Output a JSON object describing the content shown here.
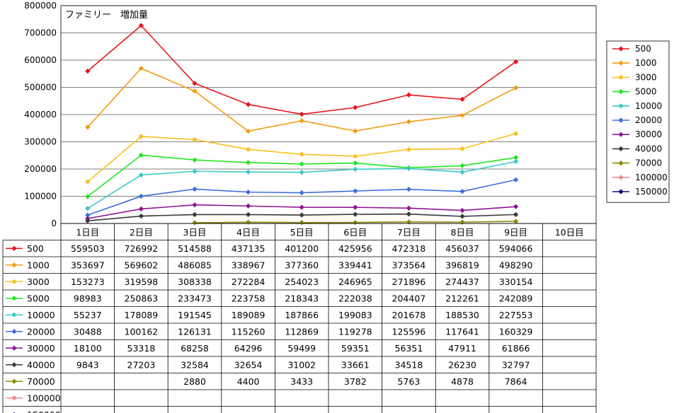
{
  "chart_data": {
    "type": "line",
    "title": "ファミリー　増加量",
    "xlabel": "",
    "ylabel": "",
    "ylim": [
      0,
      800000
    ],
    "yticks": [
      "0",
      "100000",
      "200000",
      "300000",
      "400000",
      "500000",
      "600000",
      "700000",
      "800000"
    ],
    "grid": true,
    "legend": "right",
    "categories": [
      "1日目",
      "2日目",
      "3日目",
      "4日目",
      "5日目",
      "6日目",
      "7日目",
      "8日目",
      "9日目",
      "10日目"
    ],
    "series": [
      {
        "name": "500",
        "color": "#e8141c",
        "values": [
          559503,
          726992,
          514588,
          437135,
          401200,
          425956,
          472318,
          456037,
          594066,
          null
        ]
      },
      {
        "name": "1000",
        "color": "#f39c12",
        "values": [
          353697,
          569602,
          486085,
          338967,
          377360,
          339441,
          373564,
          396819,
          498290,
          null
        ]
      },
      {
        "name": "3000",
        "color": "#f9c01c",
        "values": [
          153273,
          319598,
          308338,
          272284,
          254023,
          246965,
          271896,
          274437,
          330154,
          null
        ]
      },
      {
        "name": "5000",
        "color": "#1fe61f",
        "values": [
          98983,
          250863,
          233473,
          223758,
          218343,
          222038,
          204407,
          212261,
          242089,
          null
        ]
      },
      {
        "name": "10000",
        "color": "#3cc8c8",
        "values": [
          55237,
          178089,
          191545,
          189089,
          187866,
          199083,
          201678,
          188530,
          227553,
          null
        ]
      },
      {
        "name": "20000",
        "color": "#3d6fd9",
        "values": [
          30488,
          100162,
          126131,
          115260,
          112869,
          119278,
          125596,
          117641,
          160329,
          null
        ]
      },
      {
        "name": "30000",
        "color": "#8e1690",
        "values": [
          18100,
          53318,
          68258,
          64296,
          59499,
          59351,
          56351,
          47911,
          61866,
          null
        ]
      },
      {
        "name": "40000",
        "color": "#3a3a3a",
        "values": [
          9843,
          27203,
          32584,
          32654,
          31002,
          33661,
          34518,
          26230,
          32797,
          null
        ]
      },
      {
        "name": "70000",
        "color": "#8a8a0a",
        "values": [
          null,
          null,
          2880,
          4400,
          3433,
          3782,
          5763,
          4878,
          7864,
          null
        ]
      },
      {
        "name": "100000",
        "color": "#f08a8a",
        "values": [
          null,
          null,
          null,
          null,
          null,
          null,
          null,
          null,
          null,
          null
        ]
      },
      {
        "name": "150000",
        "color": "#0a0a7a",
        "values": [
          null,
          null,
          null,
          null,
          null,
          null,
          null,
          null,
          null,
          null
        ]
      }
    ]
  }
}
